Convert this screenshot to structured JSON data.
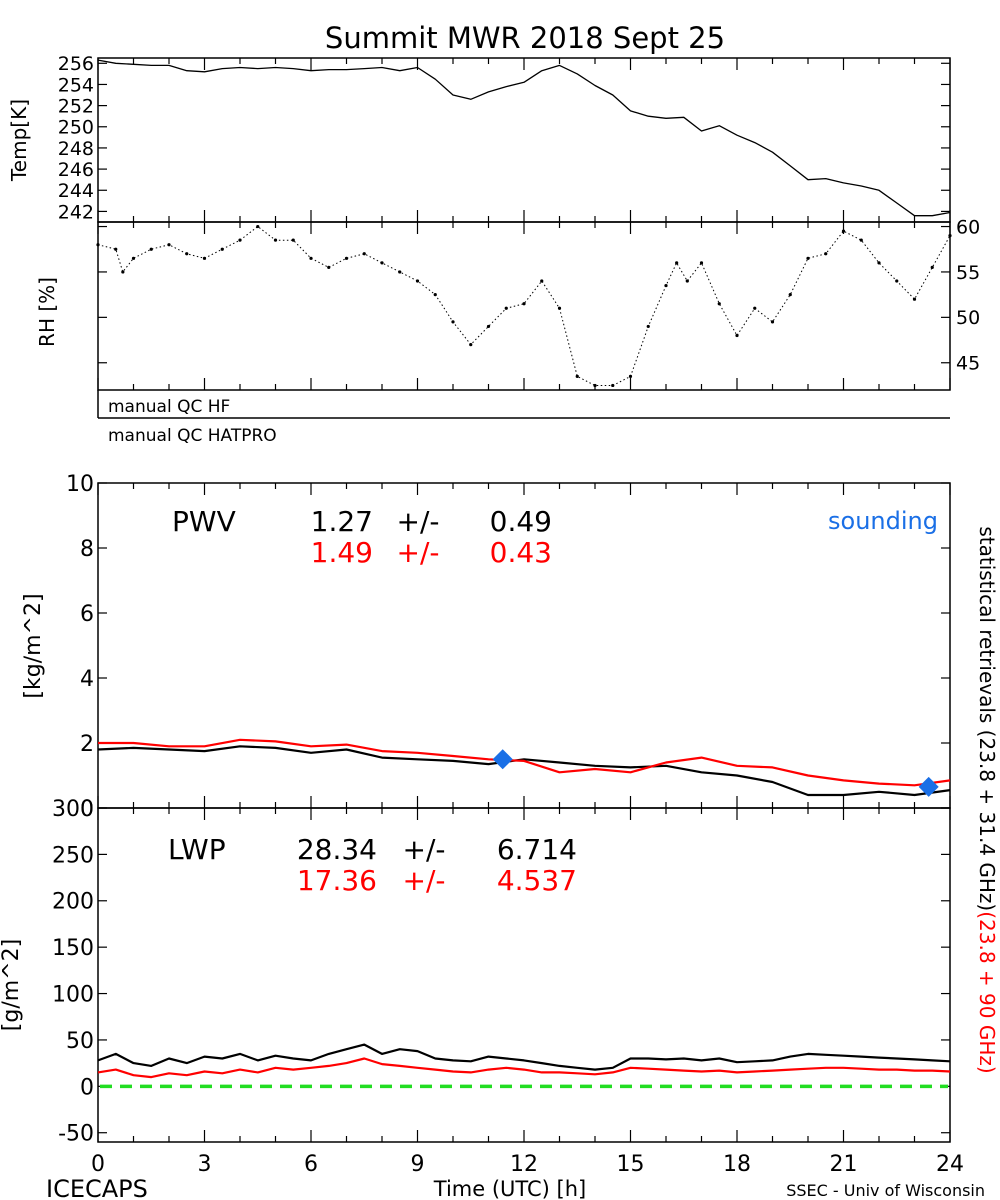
{
  "title": "Summit MWR 2018 Sept 25",
  "footer": {
    "left": "ICECAPS",
    "center": "Time (UTC) [h]",
    "right": "SSEC - Univ of Wisconsin"
  },
  "right_label": {
    "black_part": "statistical retrievals (23.8 + 31.4 GHz)",
    "red_part": "(23.8 + 90 GHz)"
  },
  "colors": {
    "black_series": "#000000",
    "red_series": "#ff0000",
    "sounding": "#1a6fe6",
    "zero_line": "#22dd22"
  },
  "qc": {
    "hf_label": "manual QC HF",
    "hatpro_label": "manual QC HATPRO"
  },
  "chart_data": [
    {
      "type": "line",
      "panel": "temperature",
      "ylabel": "Temp[K]",
      "xlim": [
        0,
        24
      ],
      "ylim": [
        241,
        256.5
      ],
      "yticks": [
        242,
        244,
        246,
        248,
        250,
        252,
        254,
        256
      ],
      "x": [
        0,
        0.5,
        1,
        1.5,
        2,
        2.5,
        3,
        3.5,
        4,
        4.5,
        5,
        5.5,
        6,
        6.5,
        7,
        7.5,
        8,
        8.5,
        9,
        9.5,
        10,
        10.5,
        11,
        11.5,
        12,
        12.5,
        13,
        13.5,
        14,
        14.5,
        15,
        15.5,
        16,
        16.5,
        17,
        17.5,
        18,
        18.5,
        19,
        19.5,
        20,
        20.5,
        21,
        21.5,
        22,
        22.5,
        23,
        23.5,
        24
      ],
      "series": [
        {
          "color": "#000000",
          "values": [
            256.3,
            256.0,
            255.9,
            255.8,
            255.8,
            255.3,
            255.2,
            255.5,
            255.6,
            255.5,
            255.6,
            255.5,
            255.3,
            255.4,
            255.4,
            255.5,
            255.6,
            255.3,
            255.6,
            254.5,
            253.0,
            252.6,
            253.3,
            253.8,
            254.2,
            255.3,
            255.8,
            255.0,
            253.9,
            253.0,
            251.5,
            251.0,
            250.8,
            250.9,
            249.6,
            250.1,
            249.2,
            248.5,
            247.6,
            246.3,
            245.0,
            245.1,
            244.7,
            244.4,
            244.0,
            242.8,
            241.6,
            241.6,
            241.9
          ]
        }
      ]
    },
    {
      "type": "scatter",
      "panel": "relative-humidity",
      "ylabel": "RH [%]",
      "xlim": [
        0,
        24
      ],
      "ylim": [
        42,
        60.5
      ],
      "yticks": [
        45,
        50,
        55,
        60
      ],
      "x": [
        0,
        0.5,
        0.7,
        1,
        1.5,
        2,
        2.5,
        3,
        3.5,
        4,
        4.5,
        5,
        5.5,
        6,
        6.5,
        7,
        7.5,
        8,
        8.5,
        9,
        9.5,
        10,
        10.5,
        11,
        11.5,
        12,
        12.5,
        13,
        13.5,
        14,
        14.5,
        15,
        15.5,
        16,
        16.3,
        16.6,
        17,
        17.5,
        18,
        18.5,
        19,
        19.5,
        20,
        20.5,
        21,
        21.5,
        22,
        22.5,
        23,
        23.5,
        24
      ],
      "series": [
        {
          "color": "#000000",
          "values": [
            58.0,
            57.5,
            55.0,
            56.5,
            57.5,
            58.0,
            57.0,
            56.5,
            57.5,
            58.5,
            60.0,
            58.5,
            58.5,
            56.5,
            55.5,
            56.5,
            57.0,
            56.0,
            55.0,
            54.0,
            52.5,
            49.5,
            47.0,
            49.0,
            51.0,
            51.5,
            54.0,
            51.0,
            43.5,
            42.5,
            42.5,
            43.5,
            49.0,
            53.5,
            56.0,
            54.0,
            56.0,
            51.5,
            48.0,
            51.0,
            49.5,
            52.5,
            56.5,
            57.0,
            59.5,
            58.5,
            56.0,
            54.0,
            52.0,
            55.5,
            59.0
          ]
        }
      ]
    },
    {
      "type": "line",
      "panel": "pwv",
      "panel_label": "PWV",
      "ylabel": "[kg/m^2]",
      "xlim": [
        0,
        24
      ],
      "ylim": [
        0,
        10
      ],
      "yticks": [
        0,
        2,
        4,
        6,
        8,
        10
      ],
      "stats": [
        {
          "mean": "1.27",
          "sep": "+/-",
          "sd": "0.49",
          "color": "#000000"
        },
        {
          "mean": "1.49",
          "sep": "+/-",
          "sd": "0.43",
          "color": "#ff0000"
        }
      ],
      "legend": {
        "label": "sounding",
        "placement": "top-right"
      },
      "x": [
        0,
        1,
        2,
        3,
        4,
        5,
        6,
        7,
        8,
        9,
        10,
        11,
        12,
        13,
        14,
        15,
        16,
        17,
        18,
        19,
        20,
        21,
        22,
        23,
        24
      ],
      "series": [
        {
          "color": "#000000",
          "values": [
            1.8,
            1.85,
            1.8,
            1.75,
            1.9,
            1.85,
            1.7,
            1.8,
            1.55,
            1.5,
            1.45,
            1.35,
            1.5,
            1.4,
            1.3,
            1.25,
            1.3,
            1.1,
            1.0,
            0.8,
            0.4,
            0.4,
            0.5,
            0.4,
            0.55
          ]
        },
        {
          "color": "#ff0000",
          "values": [
            2.0,
            2.0,
            1.9,
            1.9,
            2.1,
            2.05,
            1.9,
            1.95,
            1.75,
            1.7,
            1.6,
            1.5,
            1.45,
            1.1,
            1.2,
            1.1,
            1.4,
            1.55,
            1.3,
            1.25,
            1.0,
            0.85,
            0.75,
            0.7,
            0.85
          ]
        }
      ],
      "sounding_points": [
        {
          "x": 11.4,
          "y": 1.5
        },
        {
          "x": 23.4,
          "y": 0.65
        }
      ]
    },
    {
      "type": "line",
      "panel": "lwp",
      "panel_label": "LWP",
      "ylabel": "[g/m^2]",
      "xlabel": "Time (UTC) [h]",
      "xlim": [
        0,
        24
      ],
      "xticks": [
        0,
        3,
        6,
        9,
        12,
        15,
        18,
        21,
        24
      ],
      "ylim": [
        -60,
        300
      ],
      "yticks": [
        -50,
        0,
        50,
        100,
        150,
        200,
        250,
        300
      ],
      "stats": [
        {
          "mean": "28.34",
          "sep": "+/-",
          "sd": "6.714",
          "color": "#000000"
        },
        {
          "mean": "17.36",
          "sep": "+/-",
          "sd": "4.537",
          "color": "#ff0000"
        }
      ],
      "reference_line": {
        "y": 0,
        "style": "dashed",
        "color": "#22dd22"
      },
      "x": [
        0,
        0.5,
        1,
        1.5,
        2,
        2.5,
        3,
        3.5,
        4,
        4.5,
        5,
        5.5,
        6,
        6.5,
        7,
        7.5,
        8,
        8.5,
        9,
        9.5,
        10,
        10.5,
        11,
        11.5,
        12,
        12.5,
        13,
        13.5,
        14,
        14.5,
        15,
        15.5,
        16,
        16.5,
        17,
        17.5,
        18,
        18.5,
        19,
        19.5,
        20,
        20.5,
        21,
        21.5,
        22,
        22.5,
        23,
        23.5,
        24
      ],
      "series": [
        {
          "color": "#000000",
          "values": [
            28,
            35,
            25,
            22,
            30,
            25,
            32,
            30,
            35,
            28,
            33,
            30,
            28,
            35,
            40,
            45,
            35,
            40,
            38,
            30,
            28,
            27,
            32,
            30,
            28,
            25,
            22,
            20,
            18,
            20,
            30,
            30,
            29,
            30,
            28,
            30,
            26,
            27,
            28,
            32,
            35,
            34,
            33,
            32,
            31,
            30,
            29,
            28,
            27
          ]
        },
        {
          "color": "#ff0000",
          "values": [
            15,
            18,
            12,
            10,
            14,
            12,
            16,
            14,
            18,
            15,
            20,
            18,
            20,
            22,
            25,
            30,
            24,
            22,
            20,
            18,
            16,
            15,
            18,
            20,
            18,
            15,
            15,
            14,
            13,
            15,
            20,
            19,
            18,
            17,
            16,
            17,
            15,
            16,
            17,
            18,
            19,
            20,
            20,
            19,
            18,
            18,
            17,
            17,
            16
          ]
        }
      ]
    }
  ]
}
